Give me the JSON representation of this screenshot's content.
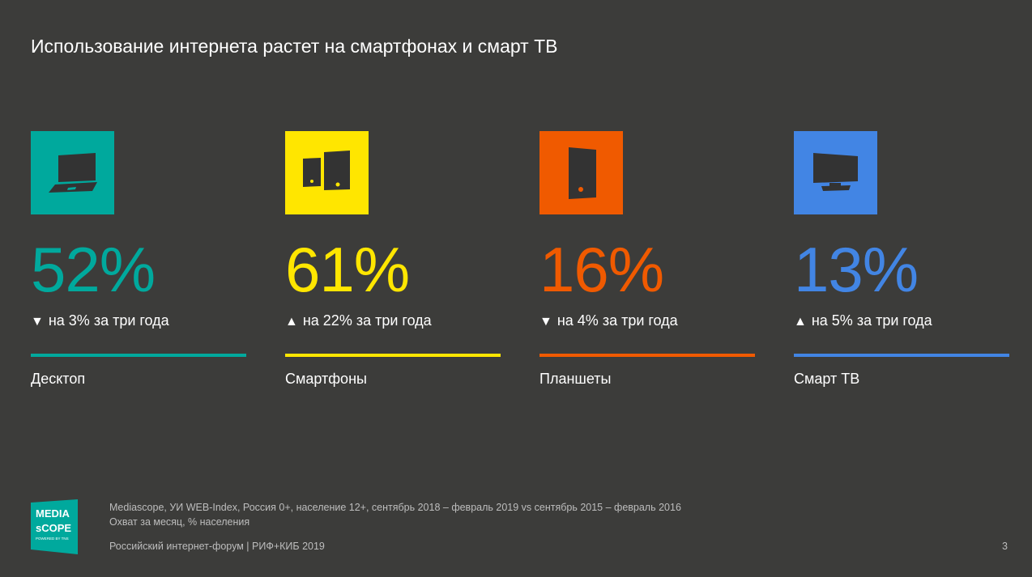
{
  "title": "Использование интернета растет на смартфонах и смарт ТВ",
  "cards": [
    {
      "icon": "laptop-icon",
      "color": "#00a99d",
      "percent": "52%",
      "direction": "down",
      "arrow": "▼",
      "change": "на 3% за три года",
      "label": "Десктоп"
    },
    {
      "icon": "smartphones-icon",
      "color": "#ffe600",
      "percent": "61%",
      "direction": "up",
      "arrow": "▲",
      "change": "на 22% за три года",
      "label": "Смартфоны"
    },
    {
      "icon": "tablet-icon",
      "color": "#f05a00",
      "percent": "16%",
      "direction": "down",
      "arrow": "▼",
      "change": "на 4% за три года",
      "label": "Планшеты"
    },
    {
      "icon": "tv-icon",
      "color": "#4285e4",
      "percent": "13%",
      "direction": "up",
      "arrow": "▲",
      "change": "на 5% за три года",
      "label": "Смарт ТВ"
    }
  ],
  "footer": {
    "logo_lines": [
      "MEDIA",
      "sCOPE",
      "POWERED BY TNS"
    ],
    "source_line1": "Mediascope, УИ WEB-Index, Россия 0+, население 12+, сентябрь 2018 – февраль 2019 vs сентябрь 2015 – февраль 2016",
    "source_line2": "Охват за месяц, % населения",
    "forum": "Российский интернет-форум | РИФ+КИБ 2019",
    "page_number": "3"
  },
  "colors": {
    "background": "#3c3c3a",
    "logo": "#00a99d"
  }
}
